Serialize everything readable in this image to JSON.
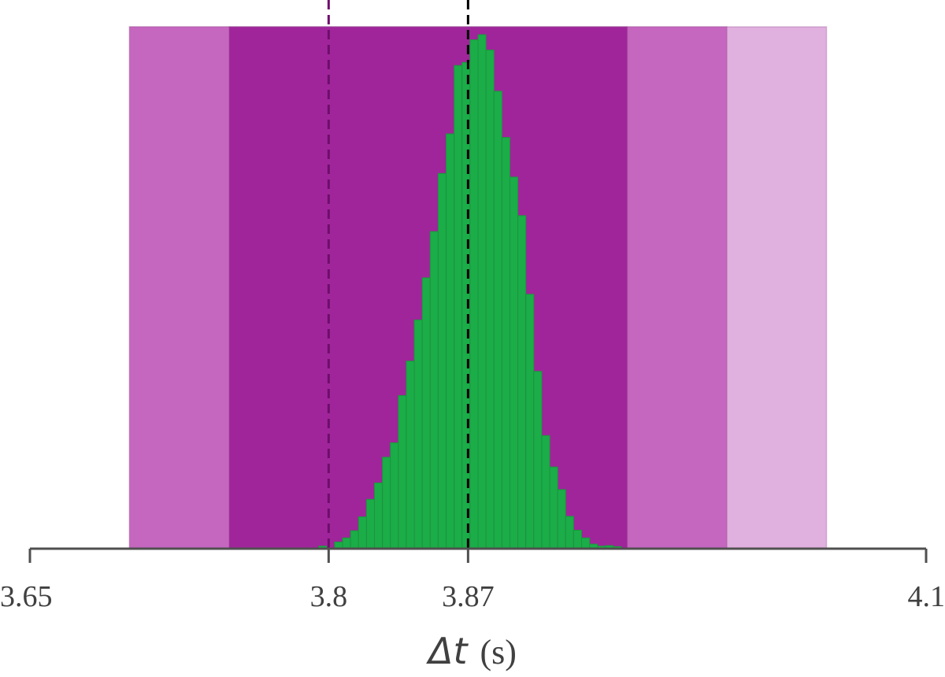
{
  "chart_data": {
    "type": "bar",
    "title": "",
    "xlabel_symbol": "Δt",
    "xlabel_unit": "(s)",
    "ylabel": "",
    "xlim": [
      3.65,
      4.1
    ],
    "x_ticks": [
      {
        "value": 3.65,
        "label": "3.65"
      },
      {
        "value": 3.8,
        "label": "3.8"
      },
      {
        "value": 3.87,
        "label": "3.87"
      },
      {
        "value": 4.1,
        "label": "4.1"
      }
    ],
    "shaded_bands": [
      {
        "name": "1-sigma",
        "start": 3.75,
        "end": 3.95,
        "color": "#a0259a"
      },
      {
        "name": "2-sigma",
        "start": 3.7,
        "end": 4.0,
        "color": "#c566bf"
      },
      {
        "name": "3-sigma",
        "start": 3.7,
        "end": 4.05,
        "color": "#e0b0de"
      }
    ],
    "reference_lines": [
      {
        "name": "purple-reference",
        "x": 3.8,
        "color": "#6f0d6c"
      },
      {
        "name": "black-reference",
        "x": 3.87,
        "color": "#000000"
      }
    ],
    "histogram": {
      "color": "#1aad48",
      "edge_color": "#22913f",
      "bin_start": 3.795,
      "bin_width": 0.004,
      "counts": [
        0.005,
        0.0,
        0.013,
        0.021,
        0.035,
        0.062,
        0.096,
        0.128,
        0.178,
        0.206,
        0.298,
        0.365,
        0.445,
        0.527,
        0.617,
        0.73,
        0.807,
        0.94,
        0.946,
        0.99,
        1.0,
        0.97,
        0.89,
        0.8,
        0.723,
        0.648,
        0.495,
        0.345,
        0.22,
        0.159,
        0.115,
        0.063,
        0.036,
        0.021,
        0.009,
        0.005,
        0.006,
        0.004
      ]
    }
  }
}
